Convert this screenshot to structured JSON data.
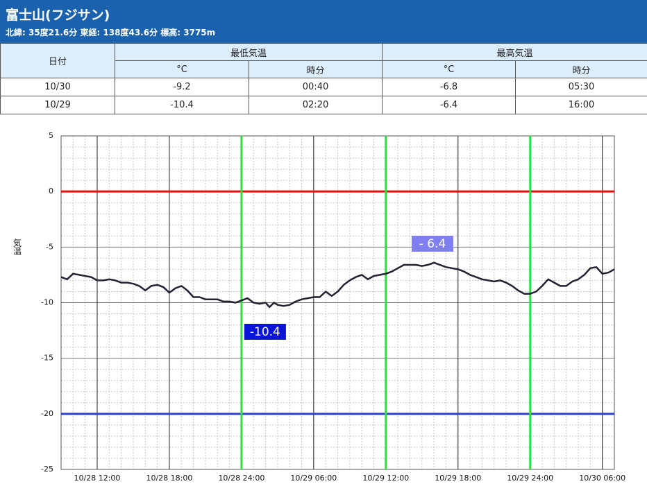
{
  "header": {
    "title": "富士山(フジサン)",
    "subtitle": "北緯: 35度21.6分 東経: 138度43.6分 標高: 3775m"
  },
  "table": {
    "date_header": "日付",
    "group_headers": [
      "最低気温",
      "最高気温"
    ],
    "sub_headers": [
      "°C",
      "時分",
      "°C",
      "時分"
    ],
    "rows": [
      [
        "10/30",
        "-9.2",
        "00:40",
        "-6.8",
        "05:30"
      ],
      [
        "10/29",
        "-10.4",
        "02:20",
        "-6.4",
        "16:00"
      ]
    ]
  },
  "chart_data": {
    "type": "line",
    "y_label": "気温",
    "color": "#222233",
    "grid": true,
    "x": [
      9,
      9.5,
      10,
      10.5,
      11,
      11.5,
      12,
      12.5,
      13,
      13.5,
      14,
      14.5,
      15,
      15.5,
      16,
      16.5,
      17,
      17.5,
      18,
      18.5,
      19,
      19.5,
      20,
      20.5,
      21,
      21.5,
      22,
      22.5,
      23,
      23.5,
      24,
      24.5,
      25,
      25.5,
      26,
      26.33,
      26.7,
      27,
      27.5,
      28,
      28.5,
      29,
      29.5,
      30,
      30.5,
      31,
      31.5,
      32,
      32.5,
      33,
      33.5,
      34,
      34.5,
      35,
      35.5,
      36,
      36.5,
      37,
      37.5,
      38,
      38.5,
      39,
      39.5,
      40,
      40.5,
      41,
      41.5,
      42,
      42.5,
      43,
      43.5,
      44,
      44.5,
      45,
      45.5,
      46,
      46.5,
      47,
      47.5,
      48,
      48.5,
      49,
      49.5,
      50,
      50.5,
      51,
      51.5,
      52,
      52.5,
      53,
      53.5,
      54,
      54.5,
      55
    ],
    "values": [
      -7.7,
      -7.9,
      -7.4,
      -7.5,
      -7.6,
      -7.7,
      -8.0,
      -8.0,
      -7.9,
      -8.0,
      -8.2,
      -8.2,
      -8.3,
      -8.5,
      -8.9,
      -8.5,
      -8.4,
      -8.6,
      -9.1,
      -8.7,
      -8.5,
      -8.9,
      -9.5,
      -9.5,
      -9.7,
      -9.7,
      -9.7,
      -9.9,
      -9.9,
      -10.0,
      -9.8,
      -9.6,
      -10.0,
      -10.1,
      -10.0,
      -10.4,
      -10.0,
      -10.2,
      -10.3,
      -10.2,
      -9.9,
      -9.7,
      -9.6,
      -9.5,
      -9.5,
      -9.0,
      -9.4,
      -9.0,
      -8.4,
      -8.0,
      -7.7,
      -7.5,
      -7.9,
      -7.6,
      -7.5,
      -7.4,
      -7.2,
      -6.9,
      -6.6,
      -6.6,
      -6.6,
      -6.7,
      -6.6,
      -6.4,
      -6.6,
      -6.8,
      -6.9,
      -7.0,
      -7.2,
      -7.5,
      -7.7,
      -7.9,
      -8.0,
      -8.1,
      -8.0,
      -8.2,
      -8.5,
      -8.9,
      -9.2,
      -9.2,
      -9.0,
      -8.5,
      -7.9,
      -8.2,
      -8.5,
      -8.5,
      -8.1,
      -7.9,
      -7.5,
      -6.9,
      -6.8,
      -7.4,
      -7.3,
      -7.0
    ],
    "xlim": [
      9,
      55
    ],
    "xticks": [
      {
        "value": 12,
        "label": "10/28 12:00"
      },
      {
        "value": 18,
        "label": "10/28 18:00"
      },
      {
        "value": 24,
        "label": "10/28 24:00"
      },
      {
        "value": 30,
        "label": "10/29 06:00"
      },
      {
        "value": 36,
        "label": "10/29 12:00"
      },
      {
        "value": 42,
        "label": "10/29 18:00"
      },
      {
        "value": 48,
        "label": "10/29 24:00"
      },
      {
        "value": 54,
        "label": "10/30 06:00"
      }
    ],
    "ylim": [
      -25,
      5
    ],
    "yticks": [
      -25,
      -20,
      -15,
      -10,
      -5,
      0,
      5
    ],
    "reference_lines": [
      {
        "value": 0,
        "color": "#e01010"
      },
      {
        "value": -20,
        "color": "#2a3fd0"
      }
    ],
    "vertical_lines": {
      "values": [
        24,
        36,
        48
      ],
      "color": "#33dd44"
    },
    "annotations": [
      {
        "text": "-10.4",
        "value": -10.4,
        "color": "#0a14d8"
      },
      {
        "text": "- 6.4",
        "value": -6.4,
        "color": "#7f7ff0"
      }
    ]
  }
}
